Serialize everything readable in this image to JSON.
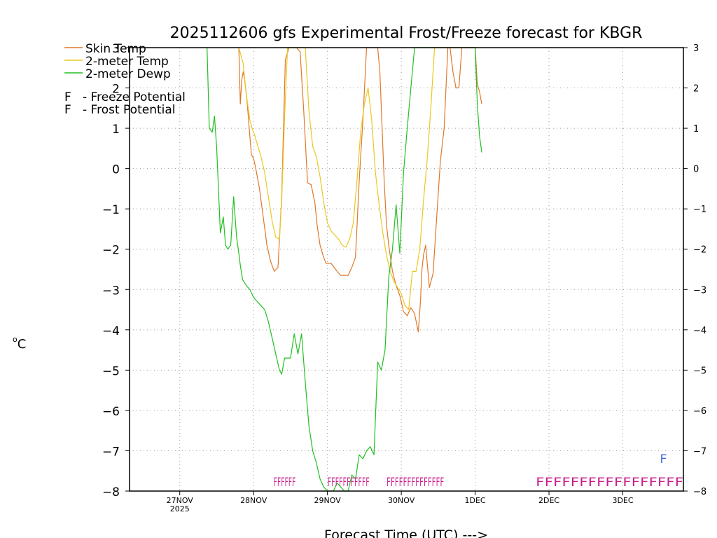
{
  "chart_data": {
    "type": "line",
    "title": "2025112606 gfs Experimental Frost/Freeze forecast for KBGR",
    "xlabel": "Forecast Time (UTC) --->",
    "ylabel": "°C",
    "ylabel_parts": {
      "o": "o",
      "c": "C"
    },
    "ylim": [
      -8,
      3
    ],
    "y_ticks": [
      3,
      2,
      1,
      0,
      -1,
      -2,
      -3,
      -4,
      -5,
      -6,
      -7,
      -8
    ],
    "x_unit": "days since 2025-11-26 00Z",
    "xlim": [
      0.32,
      7.82
    ],
    "x_ticks": [
      {
        "x": 1,
        "label": "27NOV",
        "sub": "2025"
      },
      {
        "x": 2,
        "label": "28NOV",
        "sub": ""
      },
      {
        "x": 3,
        "label": "29NOV",
        "sub": ""
      },
      {
        "x": 4,
        "label": "30NOV",
        "sub": ""
      },
      {
        "x": 5,
        "label": "1DEC",
        "sub": ""
      },
      {
        "x": 6,
        "label": "2DEC",
        "sub": ""
      },
      {
        "x": 7,
        "label": "3DEC",
        "sub": ""
      }
    ],
    "legend": [
      {
        "name": "Skin Temp",
        "color": "#e07828"
      },
      {
        "name": "2-meter Temp",
        "color": "#e8c820"
      },
      {
        "name": "2-meter Dewp",
        "color": "#20c020"
      }
    ],
    "potential_legend": [
      {
        "letter": "F",
        "text": "- Freeze Potential",
        "color": "#c81e8c"
      },
      {
        "letter": "F",
        "text": "- Frost Potential",
        "color": "#4468d8"
      }
    ],
    "series": [
      {
        "name": "Skin Temp",
        "color": "#e07828",
        "x": [
          1.8,
          1.82,
          1.84,
          1.86,
          1.88,
          1.91,
          1.94,
          1.97,
          2.0,
          2.03,
          2.08,
          2.13,
          2.18,
          2.23,
          2.28,
          2.33,
          2.38,
          2.43,
          2.48,
          2.53,
          2.58,
          2.63,
          2.68,
          2.73,
          2.78,
          2.83,
          2.86,
          2.9,
          2.94,
          2.98,
          3.01,
          3.05,
          3.09,
          3.13,
          3.18,
          3.23,
          3.28,
          3.33,
          3.38,
          3.43,
          3.48,
          3.53,
          3.58,
          3.63,
          3.68,
          3.71,
          3.74,
          3.77,
          3.8,
          3.83,
          3.88,
          3.93,
          3.98,
          4.03,
          4.08,
          4.13,
          4.18,
          4.23,
          4.26,
          4.28,
          4.3,
          4.33,
          4.38,
          4.43,
          4.48,
          4.53,
          4.58,
          4.63,
          4.66,
          4.7,
          4.74,
          4.78,
          4.82,
          4.86,
          4.9,
          4.94,
          4.98,
          5.0,
          5.03,
          5.06,
          5.09
        ],
        "y": [
          3,
          1.6,
          2.2,
          2.4,
          2.2,
          1.7,
          1.0,
          0.35,
          0.25,
          0.0,
          -0.5,
          -1.2,
          -1.9,
          -2.3,
          -2.55,
          -2.45,
          -0.7,
          2.7,
          3,
          3,
          3,
          2.9,
          1.4,
          -0.35,
          -0.4,
          -0.85,
          -1.4,
          -1.9,
          -2.15,
          -2.35,
          -2.35,
          -2.35,
          -2.45,
          -2.55,
          -2.65,
          -2.65,
          -2.65,
          -2.45,
          -2.2,
          -0.3,
          1.2,
          3,
          3,
          3,
          3,
          2.4,
          1.0,
          -0.4,
          -1.4,
          -1.9,
          -2.55,
          -2.9,
          -3.15,
          -3.55,
          -3.65,
          -3.45,
          -3.6,
          -4.05,
          -3.3,
          -2.5,
          -2.15,
          -1.9,
          -2.95,
          -2.6,
          -1.2,
          0.2,
          1.0,
          3,
          3,
          2.4,
          2.0,
          2.0,
          3,
          3,
          3,
          3,
          3,
          3,
          2.1,
          1.9,
          1.6
        ]
      },
      {
        "name": "2-meter Temp",
        "color": "#e8c820",
        "x": [
          1.8,
          1.83,
          1.86,
          1.89,
          1.92,
          1.95,
          1.98,
          2.01,
          2.05,
          2.1,
          2.15,
          2.2,
          2.25,
          2.3,
          2.35,
          2.38,
          2.42,
          2.46,
          2.5,
          2.55,
          2.6,
          2.65,
          2.7,
          2.75,
          2.8,
          2.85,
          2.9,
          2.95,
          3.0,
          3.05,
          3.1,
          3.15,
          3.2,
          3.25,
          3.3,
          3.35,
          3.4,
          3.45,
          3.5,
          3.55,
          3.6,
          3.65,
          3.7,
          3.75,
          3.8,
          3.85,
          3.9,
          3.95,
          4.0,
          4.05,
          4.1,
          4.15,
          4.2,
          4.25,
          4.3,
          4.35,
          4.4,
          4.45,
          4.5,
          4.55,
          4.6,
          4.65,
          4.7,
          4.75,
          4.8,
          4.85,
          4.9
        ],
        "y": [
          3,
          2.8,
          2.6,
          2.0,
          1.6,
          1.2,
          1.0,
          0.85,
          0.6,
          0.3,
          -0.1,
          -0.7,
          -1.3,
          -1.7,
          -1.75,
          -0.8,
          1.3,
          3,
          3,
          3,
          3,
          3,
          3,
          1.4,
          0.55,
          0.3,
          -0.2,
          -0.85,
          -1.35,
          -1.55,
          -1.65,
          -1.75,
          -1.9,
          -1.95,
          -1.75,
          -1.35,
          -0.3,
          0.9,
          1.6,
          2.0,
          1.2,
          -0.1,
          -0.9,
          -1.6,
          -2.15,
          -2.55,
          -2.8,
          -2.95,
          -3.1,
          -3.4,
          -3.5,
          -2.55,
          -2.55,
          -2.0,
          -0.8,
          0.2,
          1.5,
          3,
          3,
          3,
          3,
          3,
          3,
          3,
          3,
          3,
          3
        ]
      },
      {
        "name": "2-meter Dewp",
        "color": "#20c020",
        "x": [
          1.37,
          1.4,
          1.44,
          1.47,
          1.5,
          1.55,
          1.59,
          1.62,
          1.65,
          1.69,
          1.73,
          1.77,
          1.8,
          1.82,
          1.85,
          1.9,
          1.95,
          2.0,
          2.05,
          2.1,
          2.15,
          2.2,
          2.25,
          2.3,
          2.35,
          2.38,
          2.42,
          2.46,
          2.5,
          2.55,
          2.6,
          2.65,
          2.7,
          2.75,
          2.8,
          2.85,
          2.9,
          2.95,
          3.0,
          3.04,
          3.08,
          3.13,
          3.18,
          3.23,
          3.28,
          3.33,
          3.38,
          3.43,
          3.48,
          3.53,
          3.58,
          3.63,
          3.68,
          3.73,
          3.78,
          3.83,
          3.88,
          3.93,
          3.98,
          4.03,
          4.08,
          4.13,
          4.18,
          4.23,
          4.28,
          4.33,
          4.38,
          4.43,
          4.48,
          4.53,
          4.58,
          4.63,
          4.68,
          4.73,
          4.78,
          4.83,
          4.88,
          4.93,
          4.97,
          5.0,
          5.03,
          5.06,
          5.09
        ],
        "y": [
          3,
          1.0,
          0.9,
          1.3,
          0.5,
          -1.6,
          -1.2,
          -1.9,
          -2.0,
          -1.9,
          -0.7,
          -1.7,
          -2.1,
          -2.4,
          -2.75,
          -2.9,
          -3.0,
          -3.2,
          -3.3,
          -3.4,
          -3.5,
          -3.8,
          -4.2,
          -4.6,
          -5.0,
          -5.1,
          -4.7,
          -4.7,
          -4.7,
          -4.1,
          -4.6,
          -4.1,
          -5.3,
          -6.4,
          -7.0,
          -7.3,
          -7.7,
          -7.9,
          -8.1,
          -8.0,
          -8.0,
          -7.8,
          -7.9,
          -8.1,
          -8.0,
          -7.6,
          -7.7,
          -7.1,
          -7.2,
          -7.0,
          -6.9,
          -7.1,
          -4.8,
          -5.0,
          -4.5,
          -2.7,
          -2.0,
          -0.9,
          -2.1,
          -0.1,
          1.0,
          2.0,
          3,
          3,
          3,
          3,
          3,
          3,
          3,
          3,
          3,
          3,
          3,
          3,
          3,
          3,
          3,
          3,
          3,
          3,
          1.6,
          0.8,
          0.4
        ]
      }
    ],
    "freeze_flags": [
      {
        "x0": 2.27,
        "x1": 2.57,
        "y": -7.6,
        "text": "FFFFFF",
        "color": "#c81e8c"
      },
      {
        "x0": 3.0,
        "x1": 3.57,
        "y": -7.6,
        "text": "FFFFFFFFFFF",
        "color": "#c81e8c"
      },
      {
        "x0": 3.8,
        "x1": 4.58,
        "y": -7.6,
        "text": "FFFFFFFFFFFFFF",
        "color": "#c81e8c"
      },
      {
        "x0": 5.82,
        "x1": 7.82,
        "y": -7.6,
        "text": "FFFFFFFFFFFFFFFFF",
        "color": "#c81e8c"
      }
    ],
    "frost_flags": [
      {
        "x": 7.5,
        "y": -7.2,
        "text": "F",
        "color": "#4468d8"
      }
    ]
  }
}
